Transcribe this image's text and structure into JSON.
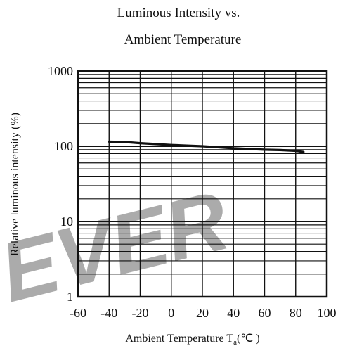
{
  "watermark": "EVER",
  "colors": {
    "line": "#111111",
    "grid": "#111111",
    "watermark": "#9cc6ea",
    "background": "#ffffff"
  },
  "chart_data": {
    "type": "line",
    "title_lines": [
      "Luminous Intensity vs.",
      "Ambient Temperature"
    ],
    "xlabel": {
      "prefix": "Ambient Temperature T",
      "subscript": "a",
      "suffix": "(℃ )"
    },
    "ylabel": "Relative luminous intensity (%)",
    "x_scale": "linear",
    "y_scale": "log",
    "xlim": [
      -60,
      100
    ],
    "ylim": [
      1,
      1000
    ],
    "x_ticks": [
      -60,
      -40,
      -20,
      0,
      20,
      40,
      60,
      80,
      100
    ],
    "x_tick_labels": [
      "-60",
      "-40",
      "-20",
      "0",
      "20",
      "40",
      "60",
      "80",
      "100"
    ],
    "y_ticks": [
      1,
      10,
      100,
      1000
    ],
    "y_tick_labels": [
      "1",
      "10",
      "100",
      "1000"
    ],
    "grid": true,
    "series": [
      {
        "x": [
          -40,
          -30,
          -20,
          -10,
          0,
          10,
          20,
          30,
          40,
          50,
          60,
          70,
          80,
          85
        ],
        "y": [
          115,
          114,
          110,
          107,
          104,
          102,
          100,
          97,
          94,
          92,
          90,
          89,
          87,
          84
        ]
      }
    ]
  }
}
